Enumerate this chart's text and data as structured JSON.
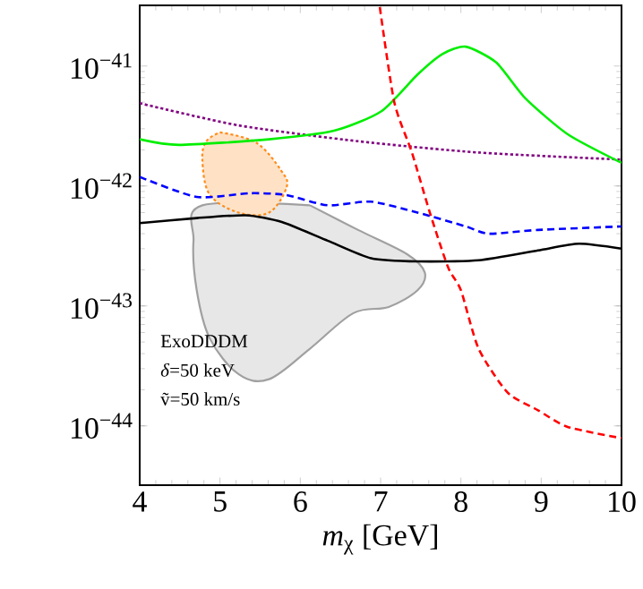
{
  "chart_data": {
    "type": "line",
    "xlabel": "*m*$_{χ}$ [GeV]",
    "log": "y",
    "xlim": [
      4,
      10
    ],
    "ylim": [
      3.2e-45,
      3.2e-41
    ],
    "xticks": [
      4,
      5,
      6,
      7,
      8,
      9,
      10
    ],
    "yticks": [
      {
        "value": 1e-44,
        "label": "10$^{−44}$"
      },
      {
        "value": 1e-43,
        "label": "10$^{−43}$"
      },
      {
        "value": 1e-42,
        "label": "10$^{−42}$"
      },
      {
        "value": 1e-41,
        "label": "10$^{−41}$"
      }
    ],
    "annotations": [
      "ExoDDDM",
      "*δ*=50 keV",
      "ṽ=50 km/s"
    ],
    "series": [
      {
        "type": "area",
        "color": "#a0a0a0",
        "x": [
          6.12,
          6.72,
          7.33,
          7.55,
          7.46,
          7.1,
          6.66,
          6.12,
          5.61,
          5.23,
          4.87,
          4.71,
          4.67,
          4.78
        ],
        "values": [
          6.9e-43,
          4.3e-43,
          2.7e-43,
          1.9e-43,
          1.35e-43,
          9.8e-44,
          8.7e-44,
          4.4e-44,
          2.45e-44,
          2.7e-44,
          5.4e-44,
          1.35e-43,
          3.5e-43,
          6.9e-43
        ]
      },
      {
        "type": "area",
        "color": "#ff8c1a",
        "line_style": "dotted",
        "x": [
          5.0,
          5.45,
          5.76,
          5.83,
          5.61,
          5.23,
          4.87,
          4.78,
          4.83
        ],
        "values": [
          2.8e-42,
          2.3e-42,
          1.35e-42,
          9.8e-43,
          6e-43,
          6e-43,
          8.5e-43,
          1.66e-42,
          2.36e-42
        ]
      },
      {
        "color": "#000000",
        "line_style": "solid",
        "x": [
          4,
          4.71,
          5.32,
          5.77,
          6.34,
          6.88,
          7.46,
          8.22,
          8.96,
          9.47,
          10
        ],
        "values": [
          4.9e-43,
          5.4e-43,
          5.7e-43,
          5e-43,
          3.5e-43,
          2.5e-43,
          2.35e-43,
          2.4e-43,
          2.9e-43,
          3.3e-43,
          3e-43
        ]
      },
      {
        "color": "#0000ff",
        "line_style": "dashed",
        "x": [
          4,
          4.71,
          5.38,
          5.83,
          6.34,
          6.88,
          7.46,
          8.06,
          8.35,
          8.96,
          10
        ],
        "values": [
          1.19e-42,
          8.1e-43,
          8.7e-43,
          8.4e-43,
          6.9e-43,
          7.4e-43,
          6e-43,
          4.6e-43,
          4e-43,
          4.3e-43,
          4.6e-43
        ]
      },
      {
        "color": "#800080",
        "line_style": "dotted",
        "x": [
          4,
          5.23,
          6.72,
          8.22,
          10
        ],
        "values": [
          4.9e-42,
          3.2e-42,
          2.36e-42,
          1.9e-42,
          1.66e-42
        ]
      },
      {
        "color": "#00ee00",
        "line_style": "solid",
        "x": [
          4,
          4.49,
          5.61,
          6.43,
          7.01,
          7.46,
          7.77,
          8.06,
          8.44,
          8.8,
          9.33,
          10
        ],
        "values": [
          2.45e-42,
          2.2e-42,
          2.45e-42,
          2.9e-42,
          4.2e-42,
          8.5e-42,
          1.26e-41,
          1.45e-41,
          1.07e-41,
          5.4e-42,
          2.7e-42,
          1.56e-42
        ]
      },
      {
        "color": "#ff0000",
        "line_style": "dashed",
        "x": [
          6.99,
          7.17,
          7.39,
          7.62,
          7.84,
          8.0,
          8.22,
          8.58,
          8.96,
          9.33,
          10
        ],
        "values": [
          3.1e-41,
          5e-42,
          1.9e-42,
          5.8e-43,
          2.1e-43,
          1.35e-43,
          4.4e-44,
          1.9e-44,
          1.35e-44,
          9.8e-45,
          7.9e-45
        ]
      }
    ]
  }
}
